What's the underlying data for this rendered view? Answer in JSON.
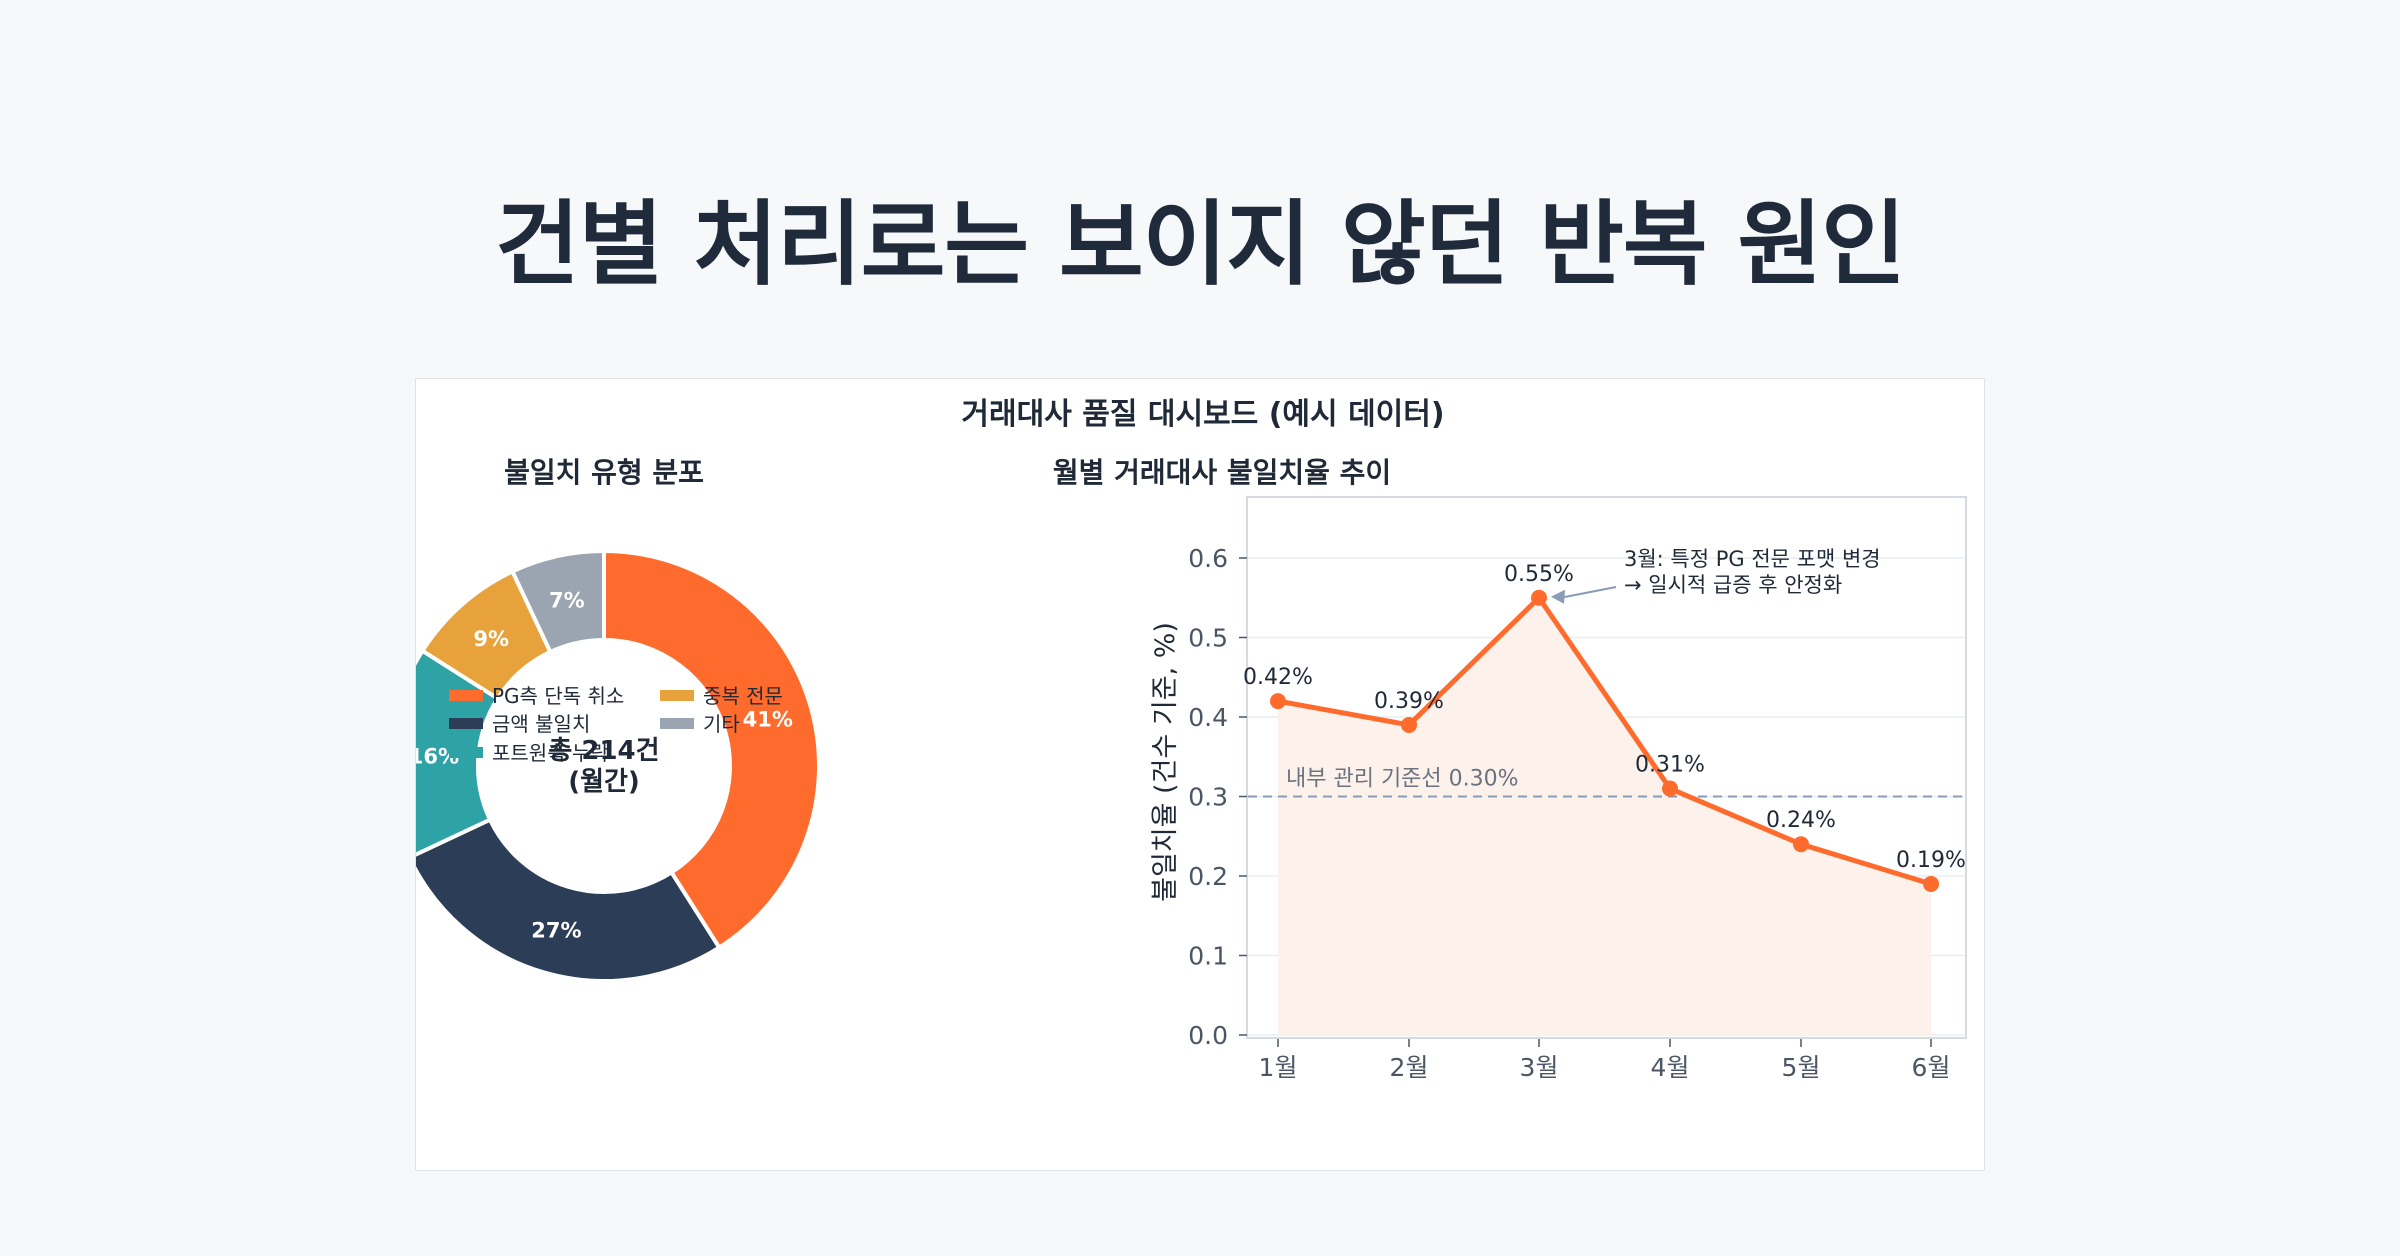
{
  "page": {
    "title": "건별 처리로는 보이지 않던 반복 원인"
  },
  "dashboard": {
    "title": "거래대사 품질 대시보드  (예시 데이터)"
  },
  "colors": {
    "accent": "#ff6b2c",
    "navy": "#2b3d57",
    "teal": "#2ea3a6",
    "amber": "#e8a23b",
    "gray": "#9aa5b1",
    "area_fill": "#fdf1ec",
    "reference": "#8a9bb5"
  },
  "chart_data": [
    {
      "type": "pie",
      "style": "donut",
      "title": "불일치 유형 분포",
      "center_label": [
        "총 214건",
        "(월간)"
      ],
      "labels": [
        "PG측 단독 취소",
        "금액 불일치",
        "포트원측 누락",
        "중복 전문",
        "기타"
      ],
      "values": [
        41,
        27,
        16,
        9,
        7
      ],
      "value_labels": [
        "41%",
        "27%",
        "16%",
        "9%",
        "7%"
      ],
      "colors": [
        "#ff6b2c",
        "#2b3d57",
        "#2ea3a6",
        "#e8a23b",
        "#9aa5b1"
      ],
      "legend_position": "bottom"
    },
    {
      "type": "line",
      "title": "월별 거래대사 불일치율 추이",
      "categories": [
        "1월",
        "2월",
        "3월",
        "4월",
        "5월",
        "6월"
      ],
      "values": [
        0.42,
        0.39,
        0.55,
        0.31,
        0.24,
        0.19
      ],
      "value_labels": [
        "0.42%",
        "0.39%",
        "0.55%",
        "0.31%",
        "0.24%",
        "0.19%"
      ],
      "ylabel": "불일치율 (건수 기준, %)",
      "ylim": [
        0,
        0.68
      ],
      "yticks": [
        0.0,
        0.1,
        0.2,
        0.3,
        0.4,
        0.5,
        0.6
      ],
      "ytick_labels": [
        "0.0",
        "0.1",
        "0.2",
        "0.3",
        "0.4",
        "0.5",
        "0.6"
      ],
      "grid": true,
      "area_fill": true,
      "reference_line": {
        "value": 0.3,
        "label": "내부 관리 기준선 0.30%"
      },
      "annotation": {
        "target": "3월",
        "lines": [
          "3월: 특정 PG 전문 포맷 변경",
          "→ 일시적 급증 후 안정화"
        ]
      }
    }
  ]
}
